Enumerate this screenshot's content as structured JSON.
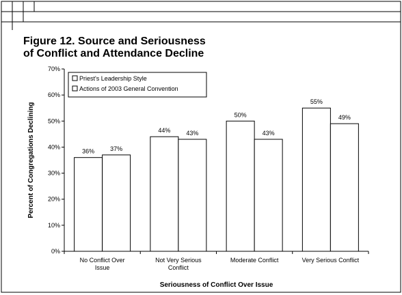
{
  "slide": {
    "title_line1": "Figure 12. Source and Seriousness",
    "title_line2": "of Conflict and Attendance Decline"
  },
  "chart_data": {
    "type": "bar",
    "xlabel": "Seriousness of Conflict Over Issue",
    "ylabel": "Percent of Congregations Declining",
    "ylim": [
      0,
      70
    ],
    "yticks": [
      "0%",
      "10%",
      "20%",
      "30%",
      "40%",
      "50%",
      "60%",
      "70%"
    ],
    "grid": false,
    "legend_position": "top-left",
    "categories": [
      [
        "No Conflict Over",
        "Issue"
      ],
      [
        "Not Very Serious",
        "Conflict"
      ],
      [
        "Moderate Conflict"
      ],
      [
        "Very Serious Conflict"
      ]
    ],
    "series": [
      {
        "name": "Priest's Leadership Style",
        "values": [
          36,
          44,
          50,
          55
        ],
        "labels": [
          "36%",
          "44%",
          "50%",
          "55%"
        ],
        "color": "#ffffff"
      },
      {
        "name": "Actions of 2003 General Convention",
        "values": [
          37,
          43,
          43,
          49
        ],
        "labels": [
          "37%",
          "43%",
          "43%",
          "49%"
        ],
        "color": "#ffffff"
      }
    ]
  }
}
